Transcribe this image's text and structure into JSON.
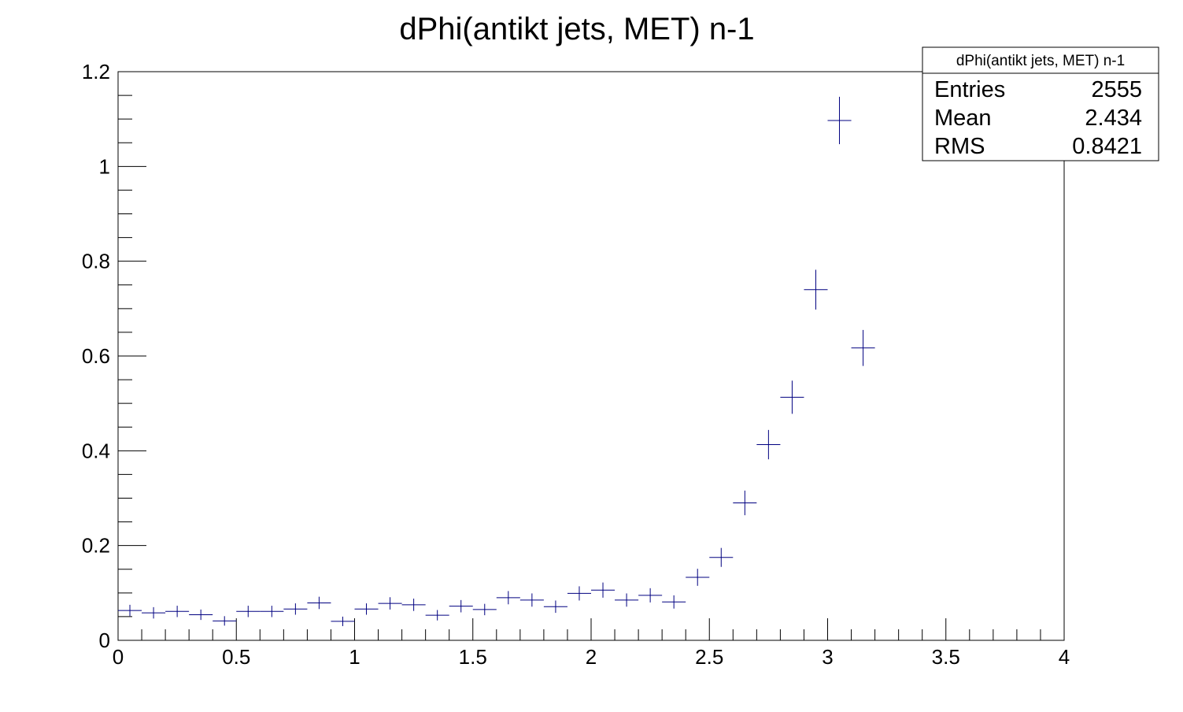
{
  "chart_data": {
    "type": "scatter",
    "title": "dPhi(antikt jets, MET) n-1",
    "xlabel": "",
    "ylabel": "",
    "xlim": [
      0,
      4
    ],
    "ylim": [
      0,
      1.2
    ],
    "x_ticks": [
      0,
      0.5,
      1,
      1.5,
      2,
      2.5,
      3,
      3.5,
      4
    ],
    "y_ticks": [
      0,
      0.2,
      0.4,
      0.6,
      0.8,
      1,
      1.2
    ],
    "x_tick_labels": [
      "0",
      "0.5",
      "1",
      "1.5",
      "2",
      "2.5",
      "3",
      "3.5",
      "4"
    ],
    "y_tick_labels": [
      "0",
      "0.2",
      "0.4",
      "0.6",
      "0.8",
      "1",
      "1.2"
    ],
    "bin_width": 0.1,
    "grid": false,
    "series": [
      {
        "color": "#000080",
        "x": [
          0.05,
          0.15,
          0.25,
          0.35,
          0.45,
          0.55,
          0.65,
          0.75,
          0.85,
          0.95,
          1.05,
          1.15,
          1.25,
          1.35,
          1.45,
          1.55,
          1.65,
          1.75,
          1.85,
          1.95,
          2.05,
          2.15,
          2.25,
          2.35,
          2.45,
          2.55,
          2.65,
          2.75,
          2.85,
          2.95,
          3.05,
          3.15
        ],
        "y": [
          0.063,
          0.058,
          0.061,
          0.054,
          0.041,
          0.061,
          0.061,
          0.066,
          0.079,
          0.04,
          0.066,
          0.078,
          0.075,
          0.053,
          0.072,
          0.065,
          0.09,
          0.085,
          0.071,
          0.099,
          0.106,
          0.085,
          0.095,
          0.081,
          0.133,
          0.175,
          0.29,
          0.413,
          0.513,
          0.74,
          1.097,
          0.617
        ],
        "yerr": [
          0.012,
          0.012,
          0.012,
          0.011,
          0.01,
          0.012,
          0.012,
          0.012,
          0.013,
          0.01,
          0.012,
          0.013,
          0.013,
          0.011,
          0.013,
          0.012,
          0.014,
          0.014,
          0.013,
          0.015,
          0.016,
          0.014,
          0.015,
          0.014,
          0.018,
          0.02,
          0.026,
          0.031,
          0.035,
          0.042,
          0.05,
          0.038
        ]
      }
    ],
    "stats_box": {
      "title": "dPhi(antikt jets, MET) n-1",
      "entries_label": "Entries",
      "entries_value": "2555",
      "mean_label": "Mean",
      "mean_value": "2.434",
      "rms_label": "RMS",
      "rms_value": "0.8421"
    }
  }
}
